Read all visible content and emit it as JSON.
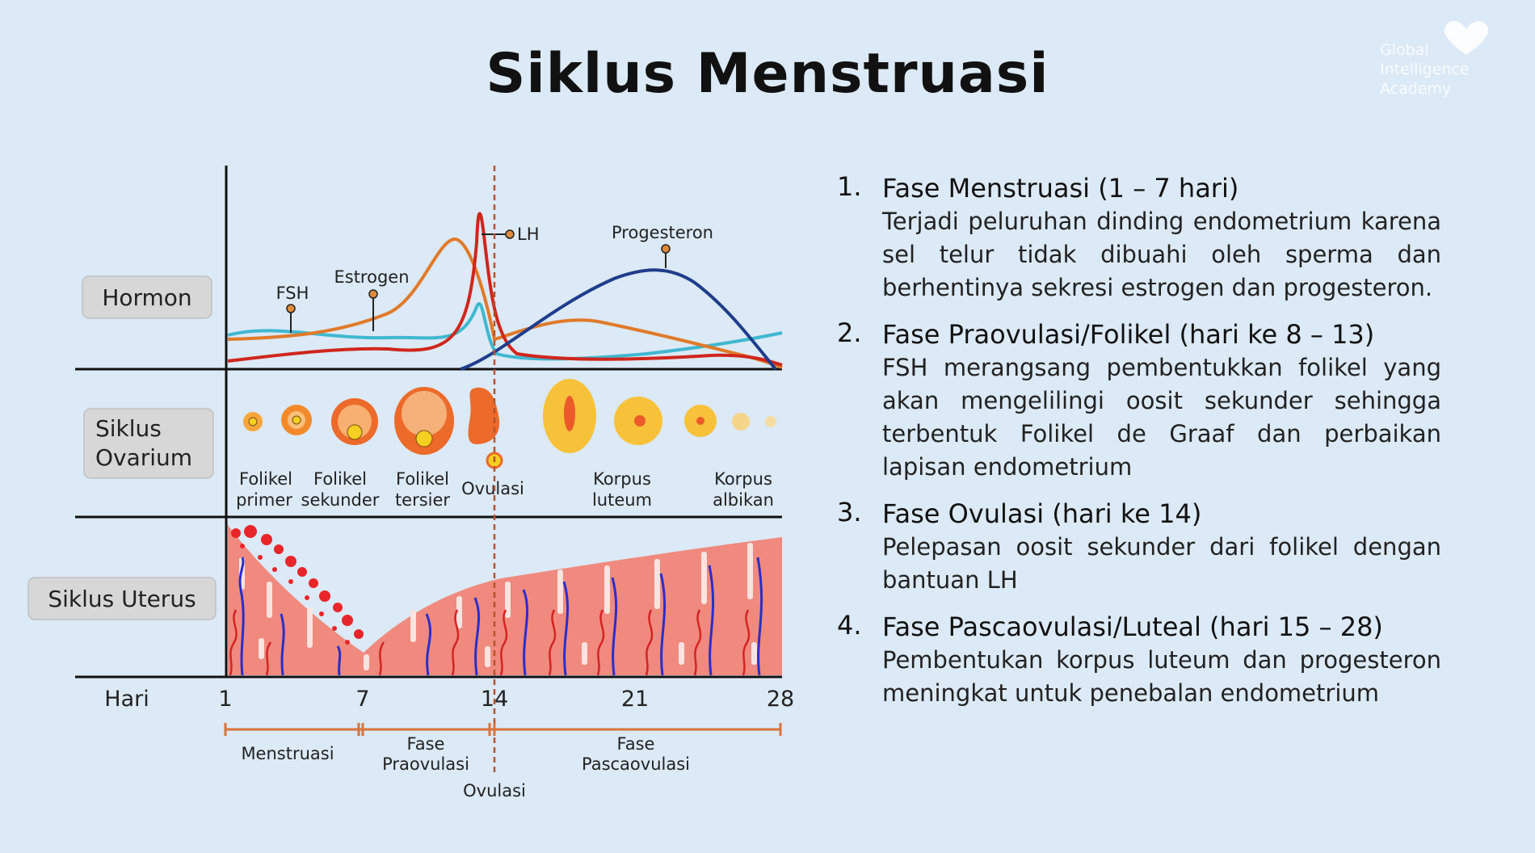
{
  "title": "Siklus Menstruasi",
  "logo": {
    "lines": [
      "Global",
      "Intelligence",
      "Academy"
    ],
    "icon": "heart-icon"
  },
  "diagram": {
    "row_labels": {
      "hormon": "Hormon",
      "ovarium_line1": "Siklus",
      "ovarium_line2": "Ovarium",
      "uterus": "Siklus Uterus"
    },
    "hormones": {
      "fsh": "FSH",
      "estrogen": "Estrogen",
      "lh": "LH",
      "progesteron": "Progesteron"
    },
    "ovary_stages": {
      "primer_1": "Folikel",
      "primer_2": "primer",
      "sekunder_1": "Folikel",
      "sekunder_2": "sekunder",
      "tersier_1": "Folikel",
      "tersier_2": "tersier",
      "ovulasi": "Ovulasi",
      "luteum_1": "Korpus",
      "luteum_2": "luteum",
      "albikan_1": "Korpus",
      "albikan_2": "albikan"
    },
    "axis": {
      "label": "Hari",
      "ticks": [
        "1",
        "7",
        "14",
        "21",
        "28"
      ]
    },
    "phase_bar": {
      "menstruasi": "Menstruasi",
      "praovulasi_1": "Fase",
      "praovulasi_2": "Praovulasi",
      "pasca_1": "Fase",
      "pasca_2": "Pascaovulasi",
      "ovulasi": "Ovulasi"
    },
    "colors": {
      "fsh": "#3fb8d0",
      "estrogen": "#e07a2a",
      "lh": "#d0261c",
      "progesteron": "#1f3d8c",
      "endometrium": "#f08a7e",
      "phase_bar": "#d9733a"
    }
  },
  "phases": [
    {
      "num": "1.",
      "title": "Fase Menstruasi (1 – 7 hari)",
      "desc": "Terjadi peluruhan dinding endometrium karena sel telur tidak dibuahi oleh sperma dan berhentinya sekresi estrogen dan progesteron."
    },
    {
      "num": "2.",
      "title": "Fase Praovulasi/Folikel (hari ke 8 – 13)",
      "desc": "FSH merangsang pembentukkan folikel yang akan mengelilingi oosit sekunder sehingga terbentuk Folikel de Graaf dan perbaikan lapisan endometrium"
    },
    {
      "num": "3.",
      "title": "Fase Ovulasi (hari ke 14)",
      "desc": "Pelepasan oosit sekunder dari folikel dengan bantuan LH"
    },
    {
      "num": "4.",
      "title": "Fase Pascaovulasi/Luteal (hari 15 – 28)",
      "desc": "Pembentukan korpus luteum dan progesteron meningkat untuk penebalan endometrium"
    }
  ]
}
